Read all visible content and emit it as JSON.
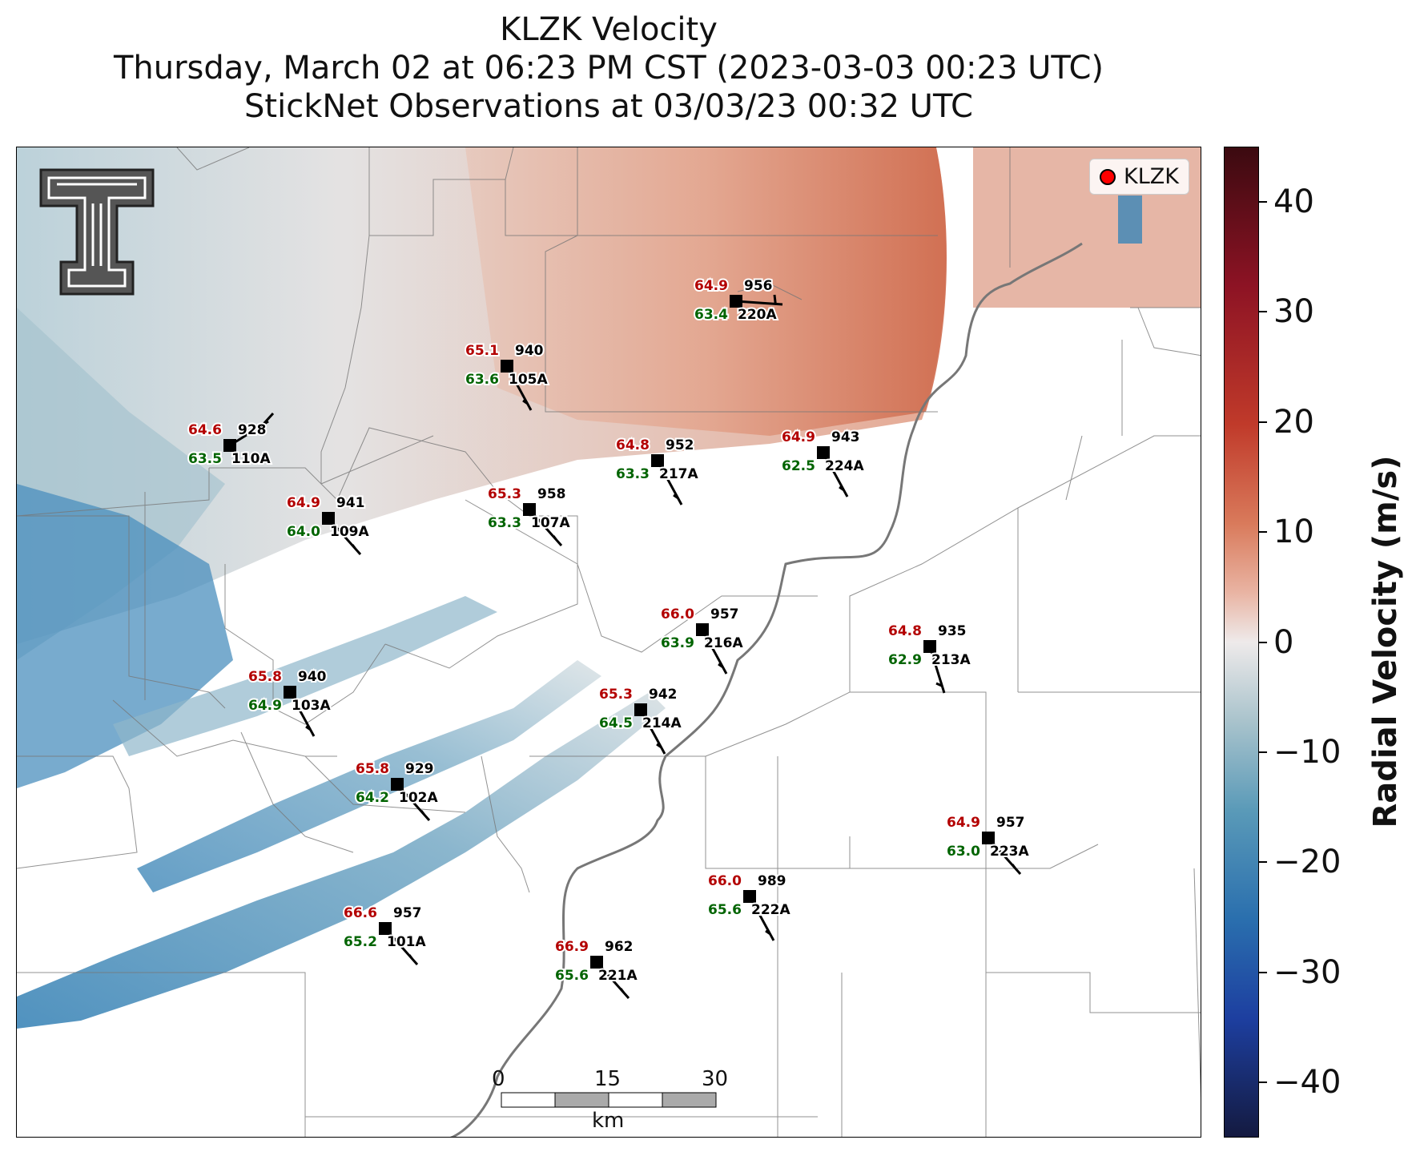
{
  "title": {
    "line1": "KLZK Velocity",
    "line2": "Thursday, March 02 at 06:23 PM CST (2023-03-03 00:23 UTC)",
    "line3": "StickNet Observations at 03/03/23 00:32 UTC"
  },
  "legend": {
    "label": "KLZK",
    "marker_color": "#ff0000"
  },
  "logo": {
    "name": "texas-tech-double-t-logo",
    "text": "TT"
  },
  "colorbar": {
    "label": "Radial Velocity (m/s)",
    "ticks": [
      "40",
      "30",
      "20",
      "10",
      "0",
      "−10",
      "−20",
      "−30",
      "−40"
    ],
    "range": [
      -45,
      45
    ],
    "colormap": [
      "#3b0a10",
      "#8d1324",
      "#c03a2a",
      "#d97a5b",
      "#e9b4a3",
      "#eeeaea",
      "#a9c3cc",
      "#5a9ab8",
      "#2a6fae",
      "#1d3fa0",
      "#141a40"
    ]
  },
  "scalebar": {
    "ticks": [
      "0",
      "15",
      "30"
    ],
    "unit": "km"
  },
  "stations": [
    {
      "id": "956",
      "temp": "64.9",
      "dew": "63.4",
      "name": "220A"
    },
    {
      "id": "940",
      "temp": "65.1",
      "dew": "63.6",
      "name": "105A"
    },
    {
      "id": "928",
      "temp": "64.6",
      "dew": "63.5",
      "name": "110A"
    },
    {
      "id": "952",
      "temp": "64.8",
      "dew": "63.3",
      "name": "217A"
    },
    {
      "id": "943",
      "temp": "64.9",
      "dew": "62.5",
      "name": "224A"
    },
    {
      "id": "958",
      "temp": "65.3",
      "dew": "63.3",
      "name": "107A"
    },
    {
      "id": "941",
      "temp": "64.9",
      "dew": "64.0",
      "name": "109A"
    },
    {
      "id": "957",
      "temp": "66.0",
      "dew": "63.9",
      "name": "216A"
    },
    {
      "id": "935",
      "temp": "64.8",
      "dew": "62.9",
      "name": "213A"
    },
    {
      "id": "940",
      "temp": "65.8",
      "dew": "64.9",
      "name": "103A"
    },
    {
      "id": "942",
      "temp": "65.3",
      "dew": "64.5",
      "name": "214A"
    },
    {
      "id": "929",
      "temp": "65.8",
      "dew": "64.2",
      "name": "102A"
    },
    {
      "id": "957",
      "temp": "64.9",
      "dew": "63.0",
      "name": "223A"
    },
    {
      "id": "989",
      "temp": "66.0",
      "dew": "65.6",
      "name": "222A"
    },
    {
      "id": "957",
      "temp": "66.6",
      "dew": "65.2",
      "name": "101A"
    },
    {
      "id": "962",
      "temp": "66.9",
      "dew": "65.6",
      "name": "221A"
    }
  ]
}
